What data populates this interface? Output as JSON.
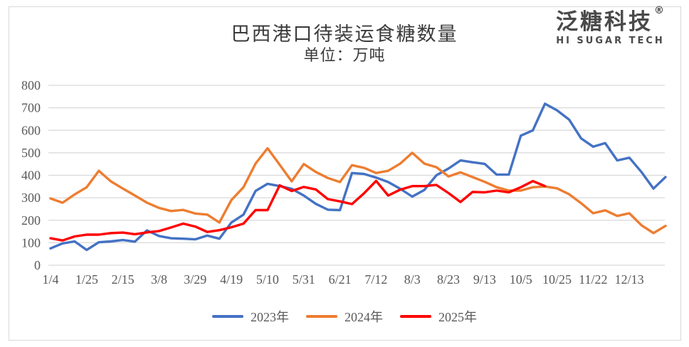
{
  "header": {
    "title": "巴西港口待装运食糖数量",
    "subtitle": "单位：万吨"
  },
  "logo": {
    "brand": "泛糖科技",
    "registered_mark": "®",
    "subtext": "HI SUGAR TECH"
  },
  "chart_data": {
    "type": "line",
    "title": "巴西港口待装运食糖数量",
    "unit": "万吨",
    "grid": "horizontal",
    "legend_position": "bottom",
    "y_axis": {
      "min": 0,
      "max": 800,
      "step": 100,
      "ticks": [
        0,
        100,
        200,
        300,
        400,
        500,
        600,
        700,
        800
      ]
    },
    "x_tick_labels": [
      "1/4",
      "1/25",
      "2/15",
      "3/8",
      "3/29",
      "4/19",
      "5/10",
      "5/31",
      "6/21",
      "7/12",
      "8/3",
      "8/23",
      "9/13",
      "10/5",
      "10/25",
      "11/22",
      "12/13"
    ],
    "label_interval": 3,
    "n_points": 52,
    "colors": {
      "grid": "#d9d9d9",
      "tick_text": "#595959",
      "title_text": "#3b3b3b"
    },
    "series": [
      {
        "name": "2023年",
        "color": "#4472C4",
        "values": [
          75,
          97,
          106,
          68,
          102,
          106,
          112,
          105,
          155,
          130,
          120,
          118,
          115,
          132,
          118,
          190,
          225,
          330,
          362,
          352,
          340,
          310,
          273,
          247,
          245,
          410,
          406,
          390,
          370,
          340,
          305,
          335,
          400,
          430,
          466,
          458,
          451,
          403,
          403,
          576,
          600,
          718,
          689,
          648,
          564,
          527,
          543,
          466,
          478,
          415,
          341,
          392
        ]
      },
      {
        "name": "2024年",
        "color": "#ED7D31",
        "values": [
          297,
          278,
          315,
          347,
          420,
          373,
          341,
          310,
          278,
          255,
          241,
          246,
          230,
          225,
          190,
          290,
          347,
          452,
          520,
          447,
          373,
          450,
          415,
          388,
          370,
          445,
          433,
          410,
          420,
          452,
          500,
          452,
          436,
          395,
          413,
          392,
          371,
          347,
          332,
          332,
          347,
          350,
          342,
          316,
          276,
          231,
          244,
          219,
          231,
          178,
          143,
          175
        ]
      },
      {
        "name": "2025年",
        "color": "#FF0000",
        "values": [
          120,
          110,
          128,
          136,
          136,
          143,
          145,
          138,
          146,
          152,
          168,
          185,
          172,
          148,
          156,
          169,
          185,
          245,
          245,
          355,
          330,
          348,
          337,
          294,
          284,
          272,
          320,
          375,
          310,
          336,
          352,
          352,
          357,
          321,
          281,
          326,
          324,
          332,
          324,
          347,
          374,
          352
        ]
      }
    ]
  }
}
